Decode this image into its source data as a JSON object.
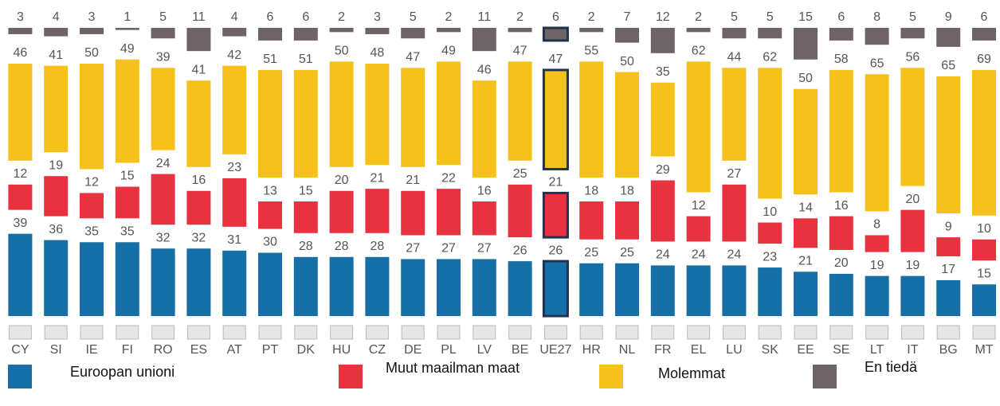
{
  "chart_data": {
    "type": "separated-stacked-bar",
    "categories": [
      "CY",
      "SI",
      "IE",
      "FI",
      "RO",
      "ES",
      "AT",
      "PT",
      "DK",
      "HU",
      "CZ",
      "DE",
      "PL",
      "LV",
      "BE",
      "UE27",
      "HR",
      "NL",
      "FR",
      "EL",
      "LU",
      "SK",
      "EE",
      "SE",
      "LT",
      "IT",
      "BG",
      "MT"
    ],
    "highlight": "UE27",
    "series": [
      {
        "name": "Euroopan unioni",
        "color": "#166fa6",
        "values": [
          39,
          36,
          35,
          35,
          32,
          32,
          31,
          30,
          28,
          28,
          28,
          27,
          27,
          27,
          26,
          26,
          25,
          25,
          24,
          24,
          24,
          23,
          21,
          20,
          19,
          19,
          17,
          15
        ]
      },
      {
        "name": "Muut maailman maat",
        "color": "#e8323f",
        "values": [
          12,
          19,
          12,
          15,
          24,
          16,
          23,
          13,
          15,
          20,
          21,
          21,
          22,
          16,
          25,
          21,
          18,
          18,
          29,
          12,
          27,
          10,
          14,
          16,
          8,
          20,
          9,
          10
        ]
      },
      {
        "name": "Molemmat",
        "color": "#f7c11d",
        "values": [
          46,
          41,
          50,
          49,
          39,
          41,
          42,
          51,
          51,
          50,
          48,
          47,
          49,
          46,
          47,
          47,
          55,
          50,
          35,
          62,
          44,
          62,
          50,
          58,
          65,
          56,
          65,
          69
        ]
      },
      {
        "name": "En tiedä",
        "color": "#6e6367",
        "values": [
          3,
          4,
          3,
          1,
          5,
          11,
          4,
          6,
          6,
          2,
          3,
          5,
          2,
          11,
          2,
          6,
          2,
          7,
          12,
          2,
          5,
          5,
          15,
          6,
          8,
          5,
          9,
          6
        ]
      }
    ]
  }
}
